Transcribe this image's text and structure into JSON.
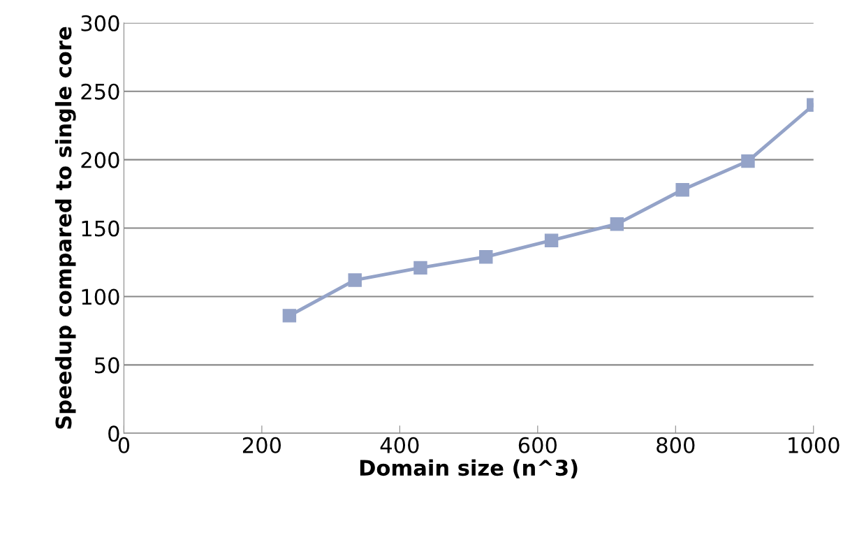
{
  "chart_data": {
    "type": "line",
    "xlabel": "Domain size (n^3)",
    "ylabel": "Speedup compared to single core",
    "x": [
      240,
      335,
      430,
      525,
      620,
      715,
      810,
      905,
      1000
    ],
    "series": [
      {
        "color": "#94a3c8",
        "values": [
          86,
          112,
          121,
          129,
          141,
          153,
          178,
          199,
          240
        ]
      }
    ],
    "xlim": [
      0,
      1000
    ],
    "xticks": [
      0,
      200,
      400,
      600,
      800,
      1000
    ],
    "ylim": [
      0,
      300
    ],
    "yticks": [
      0,
      50,
      100,
      150,
      200,
      250,
      300
    ],
    "grid": "y",
    "marker": "square",
    "line_style": "solid",
    "legend": false
  }
}
